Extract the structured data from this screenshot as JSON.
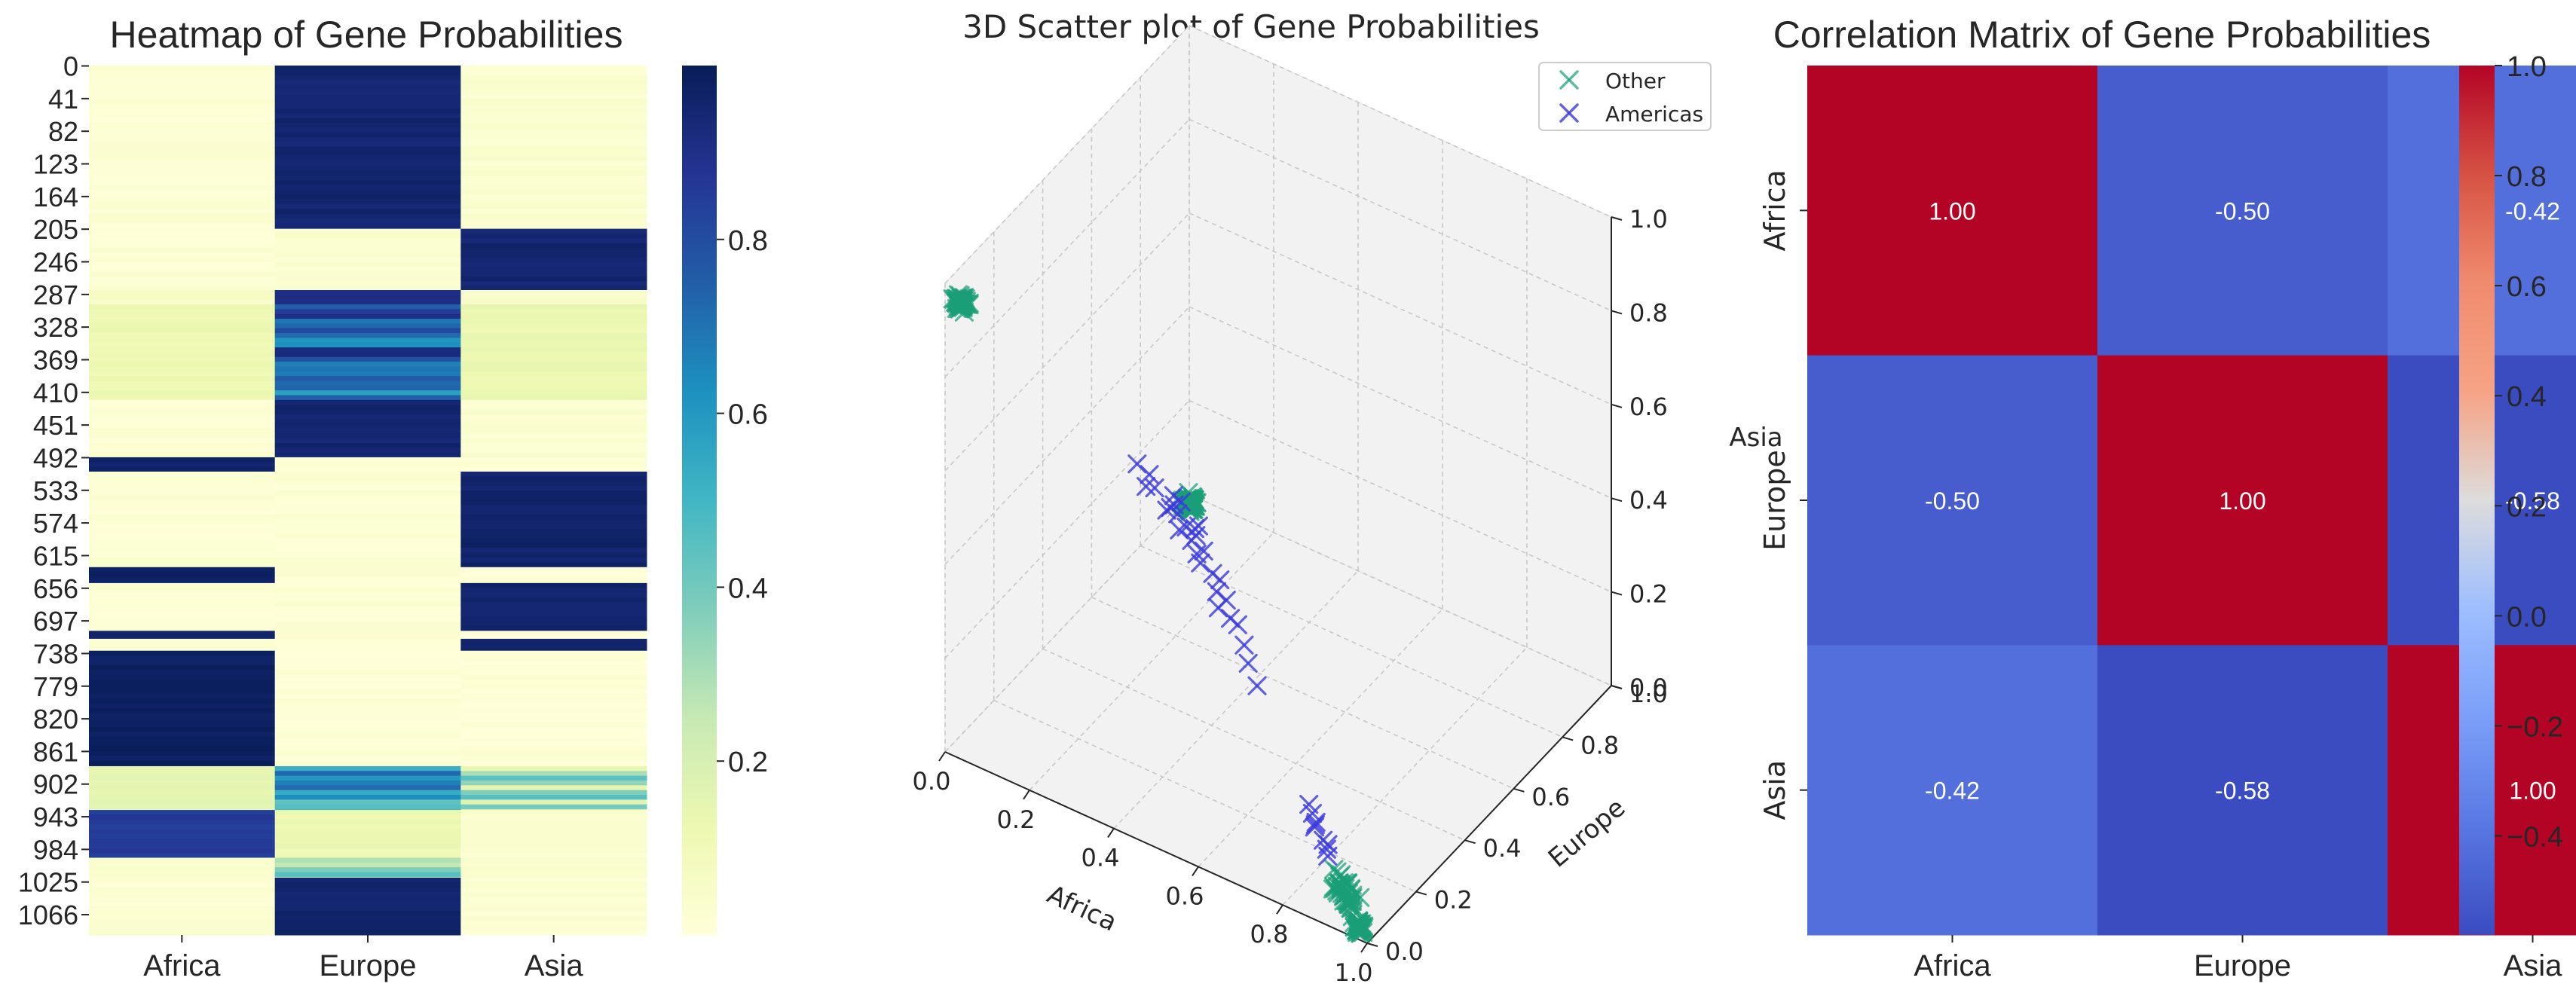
{
  "chart_data": [
    {
      "type": "heatmap",
      "title": "Heatmap of Gene Probabilities",
      "columns": [
        "Africa",
        "Europe",
        "Asia"
      ],
      "row_tick_labels": [
        "0",
        "41",
        "82",
        "123",
        "164",
        "205",
        "246",
        "287",
        "328",
        "369",
        "410",
        "451",
        "492",
        "533",
        "574",
        "615",
        "656",
        "697",
        "738",
        "779",
        "820",
        "861",
        "902",
        "943",
        "984",
        "1025",
        "1066"
      ],
      "n_rows": 1092,
      "colormap": "YlGnBu",
      "colorbar_ticks": [
        "0.2",
        "0.4",
        "0.6",
        "0.8"
      ],
      "colorbar_range": [
        0.0,
        1.0
      ],
      "segments": [
        {
          "rows": [
            0,
            205
          ],
          "values": [
            0.02,
            0.95,
            0.03
          ]
        },
        {
          "rows": [
            205,
            282
          ],
          "values": [
            0.02,
            0.03,
            0.95
          ]
        },
        {
          "rows": [
            282,
            300
          ],
          "values": [
            0.05,
            0.9,
            0.05
          ]
        },
        {
          "rows": [
            300,
            420
          ],
          "values": [
            0.12,
            0.75,
            0.13
          ]
        },
        {
          "rows": [
            420,
            492
          ],
          "values": [
            0.02,
            0.95,
            0.03
          ]
        },
        {
          "rows": [
            492,
            510
          ],
          "values": [
            0.97,
            0.02,
            0.01
          ]
        },
        {
          "rows": [
            510,
            630
          ],
          "values": [
            0.02,
            0.02,
            0.96
          ]
        },
        {
          "rows": [
            630,
            650
          ],
          "values": [
            0.97,
            0.02,
            0.01
          ]
        },
        {
          "rows": [
            650,
            710
          ],
          "values": [
            0.02,
            0.02,
            0.96
          ]
        },
        {
          "rows": [
            710,
            720
          ],
          "values": [
            0.97,
            0.02,
            0.01
          ]
        },
        {
          "rows": [
            720,
            735
          ],
          "values": [
            0.02,
            0.02,
            0.96
          ]
        },
        {
          "rows": [
            735,
            880
          ],
          "values": [
            0.98,
            0.01,
            0.01
          ]
        },
        {
          "rows": [
            880,
            935
          ],
          "values": [
            0.15,
            0.55,
            0.3
          ]
        },
        {
          "rows": [
            935,
            995
          ],
          "values": [
            0.85,
            0.12,
            0.03
          ]
        },
        {
          "rows": [
            995,
            1020
          ],
          "values": [
            0.05,
            0.4,
            0.05
          ]
        },
        {
          "rows": [
            1020,
            1092
          ],
          "values": [
            0.02,
            0.96,
            0.02
          ]
        }
      ]
    },
    {
      "type": "scatter",
      "title": "3D Scatter plot of Gene Probabilities",
      "xlabel": "Africa",
      "ylabel": "Europe",
      "zlabel": "Asia",
      "axis_ticks": [
        "0.0",
        "0.2",
        "0.4",
        "0.6",
        "0.8",
        "1.0"
      ],
      "xlim": [
        0,
        1
      ],
      "ylim": [
        0,
        1
      ],
      "zlim": [
        0,
        1
      ],
      "grid": true,
      "legend_position": "top-right",
      "marker": "x",
      "series": [
        {
          "name": "Other",
          "color": "#1a9e77",
          "clusters": [
            {
              "center": [
                0.02,
                0.03,
                0.95
              ],
              "spread": 0.02,
              "count": 60
            },
            {
              "center": [
                0.03,
                0.95,
                0.02
              ],
              "spread": 0.02,
              "count": 80
            },
            {
              "center": [
                0.97,
                0.02,
                0.01
              ],
              "spread": 0.015,
              "count": 40
            },
            {
              "center": [
                0.9,
                0.08,
                0.02
              ],
              "spread": 0.04,
              "count": 30
            }
          ]
        },
        {
          "name": "Americas",
          "color": "#3b3bdc",
          "points": [
            [
              0.05,
              0.75,
              0.2
            ],
            [
              0.05,
              0.7,
              0.25
            ],
            [
              0.08,
              0.72,
              0.2
            ],
            [
              0.1,
              0.65,
              0.25
            ],
            [
              0.12,
              0.7,
              0.18
            ],
            [
              0.1,
              0.78,
              0.12
            ],
            [
              0.15,
              0.7,
              0.15
            ],
            [
              0.08,
              0.8,
              0.12
            ],
            [
              0.12,
              0.78,
              0.1
            ],
            [
              0.15,
              0.75,
              0.1
            ],
            [
              0.05,
              0.85,
              0.1
            ],
            [
              0.1,
              0.85,
              0.05
            ],
            [
              0.15,
              0.8,
              0.05
            ],
            [
              0.2,
              0.75,
              0.05
            ],
            [
              0.2,
              0.78,
              0.02
            ],
            [
              0.25,
              0.72,
              0.03
            ],
            [
              0.08,
              0.9,
              0.02
            ],
            [
              0.3,
              0.65,
              0.05
            ],
            [
              0.35,
              0.62,
              0.03
            ],
            [
              0.12,
              0.82,
              0.06
            ],
            [
              0.2,
              0.7,
              0.1
            ],
            [
              0.25,
              0.68,
              0.07
            ],
            [
              0.18,
              0.72,
              0.1
            ],
            [
              0.1,
              0.75,
              0.15
            ],
            [
              0.4,
              0.55,
              0.05
            ],
            [
              0.3,
              0.6,
              0.1
            ],
            [
              0.3,
              0.68,
              0.02
            ],
            [
              0.05,
              0.88,
              0.07
            ],
            [
              0.45,
              0.5,
              0.05
            ],
            [
              0.7,
              0.28,
              0.02
            ],
            [
              0.74,
              0.24,
              0.02
            ],
            [
              0.78,
              0.2,
              0.02
            ],
            [
              0.76,
              0.2,
              0.04
            ],
            [
              0.8,
              0.18,
              0.02
            ],
            [
              0.82,
              0.15,
              0.03
            ],
            [
              0.72,
              0.26,
              0.02
            ],
            [
              0.75,
              0.22,
              0.03
            ],
            [
              0.78,
              0.22,
              0.0
            ]
          ]
        }
      ]
    },
    {
      "type": "heatmap",
      "title": "Correlation Matrix of Gene Probabilities",
      "labels": [
        "Africa",
        "Europe",
        "Asia"
      ],
      "values": [
        [
          1.0,
          -0.5,
          -0.42
        ],
        [
          -0.5,
          1.0,
          -0.58
        ],
        [
          -0.42,
          -0.58,
          1.0
        ]
      ],
      "cell_labels": [
        [
          "1.00",
          "-0.50",
          "-0.42"
        ],
        [
          "-0.50",
          "1.00",
          "-0.58"
        ],
        [
          "-0.42",
          "-0.58",
          "1.00"
        ]
      ],
      "colormap": "coolwarm",
      "color_range": [
        -0.58,
        1.0
      ],
      "colorbar_ticks": [
        "−0.4",
        "−0.2",
        "0.0",
        "0.2",
        "0.4",
        "0.6",
        "0.8",
        "1.0"
      ]
    }
  ]
}
